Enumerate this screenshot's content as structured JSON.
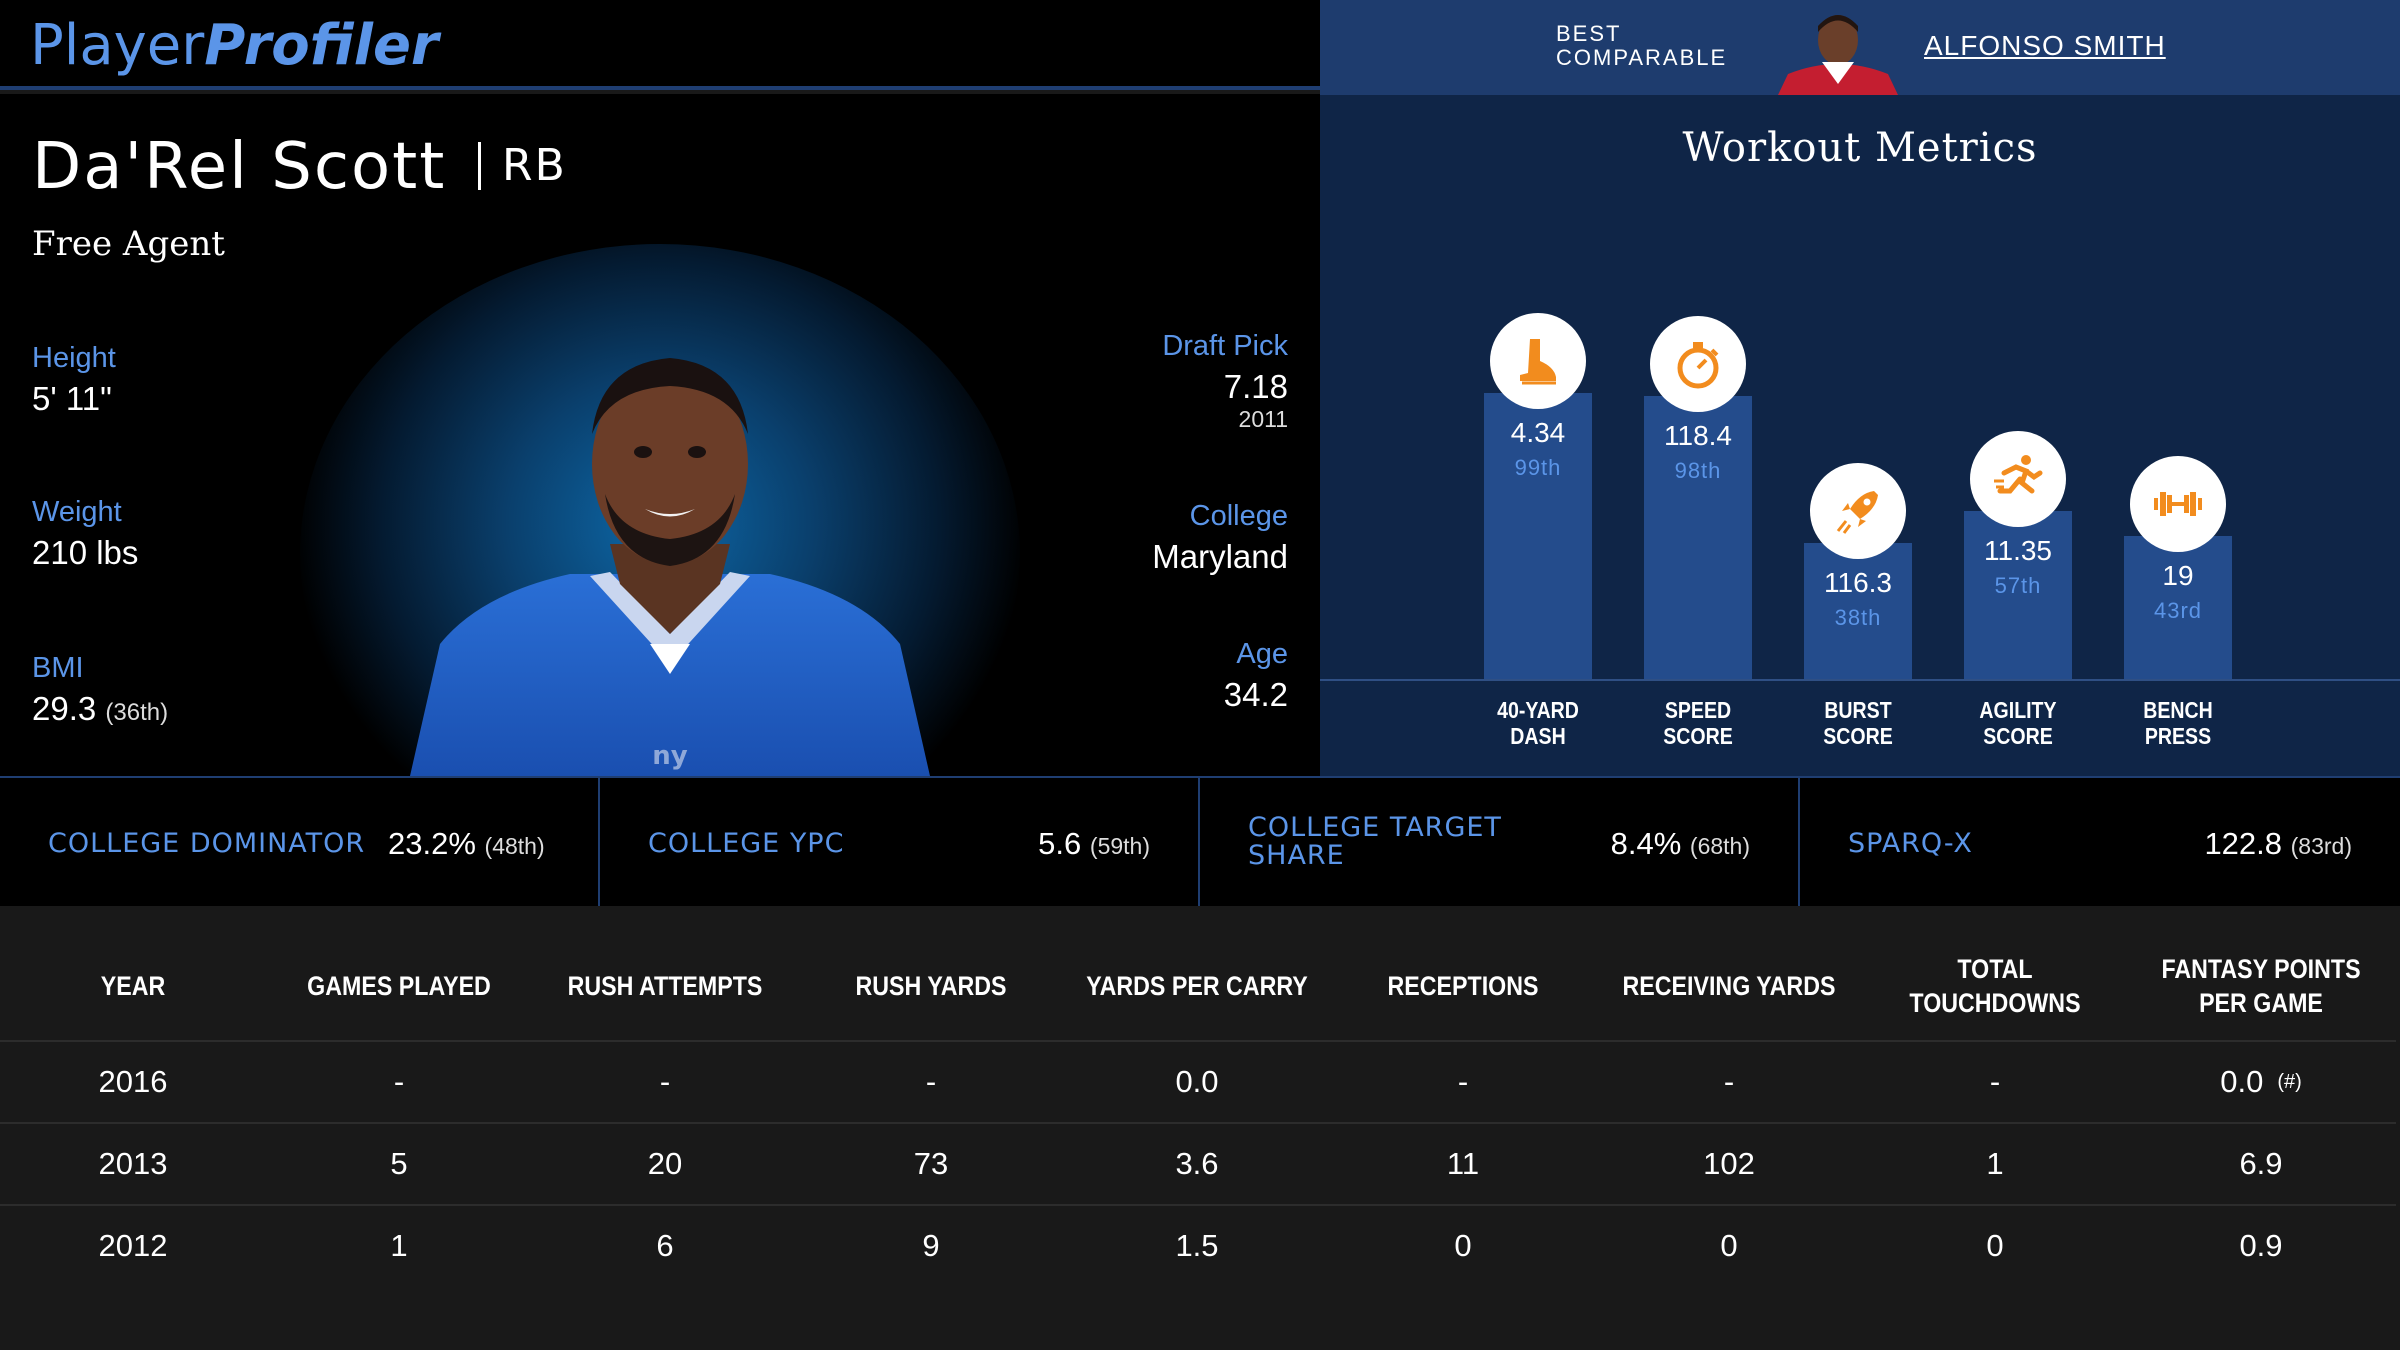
{
  "header": {
    "logo_part1": "Player",
    "logo_part2": "Profiler",
    "best_comparable_label": "BEST COMPARABLE",
    "best_comparable_name": "ALFONSO SMITH"
  },
  "player": {
    "name": "Da'Rel Scott",
    "position": "RB",
    "status": "Free Agent",
    "height_label": "Height",
    "height": "5' 11\"",
    "weight_label": "Weight",
    "weight": "210 lbs",
    "bmi_label": "BMI",
    "bmi": "29.3",
    "bmi_rank": "(36th)",
    "draft_label": "Draft Pick",
    "draft_pick": "7.18",
    "draft_year": "2011",
    "college_label": "College",
    "college": "Maryland",
    "age_label": "Age",
    "age": "34.2"
  },
  "workout": {
    "title": "Workout Metrics",
    "metrics": [
      {
        "label_line1": "40-YARD",
        "label_line2": "DASH",
        "value": "4.34",
        "percentile": "99th",
        "pct_value": 99,
        "icon": "shoe-icon"
      },
      {
        "label_line1": "SPEED",
        "label_line2": "SCORE",
        "value": "118.4",
        "percentile": "98th",
        "pct_value": 98,
        "icon": "stopwatch-icon"
      },
      {
        "label_line1": "BURST",
        "label_line2": "SCORE",
        "value": "116.3",
        "percentile": "38th",
        "pct_value": 38,
        "icon": "rocket-icon"
      },
      {
        "label_line1": "AGILITY",
        "label_line2": "SCORE",
        "value": "11.35",
        "percentile": "57th",
        "pct_value": 57,
        "icon": "runner-icon"
      },
      {
        "label_line1": "BENCH",
        "label_line2": "PRESS",
        "value": "19",
        "percentile": "43rd",
        "pct_value": 43,
        "icon": "barbell-icon"
      }
    ]
  },
  "college_stats": [
    {
      "label": "COLLEGE DOMINATOR",
      "value": "23.2%",
      "rank": "(48th)"
    },
    {
      "label": "COLLEGE YPC",
      "value": "5.6",
      "rank": "(59th)"
    },
    {
      "label": "COLLEGE TARGET SHARE",
      "value": "8.4%",
      "rank": "(68th)"
    },
    {
      "label": "SPARQ-X",
      "value": "122.8",
      "rank": "(83rd)"
    }
  ],
  "table": {
    "headers": [
      "YEAR",
      "GAMES PLAYED",
      "RUSH ATTEMPTS",
      "RUSH YARDS",
      "YARDS PER CARRY",
      "RECEPTIONS",
      "RECEIVING YARDS",
      "TOTAL TOUCHDOWNS",
      "FANTASY POINTS PER GAME"
    ],
    "rows": [
      [
        "2016",
        "-",
        "-",
        "-",
        "0.0",
        "-",
        "-",
        "-",
        "0.0"
      ],
      [
        "2013",
        "5",
        "20",
        "73",
        "3.6",
        "11",
        "102",
        "1",
        "6.9"
      ],
      [
        "2012",
        "1",
        "6",
        "9",
        "1.5",
        "0",
        "0",
        "0",
        "0.9"
      ]
    ],
    "rank_note": "(#)"
  },
  "colors": {
    "accent_blue": "#5b95e8",
    "panel_navy": "#0f2547",
    "bar_blue": "#244c8c",
    "icon_orange": "#f28c1e"
  }
}
